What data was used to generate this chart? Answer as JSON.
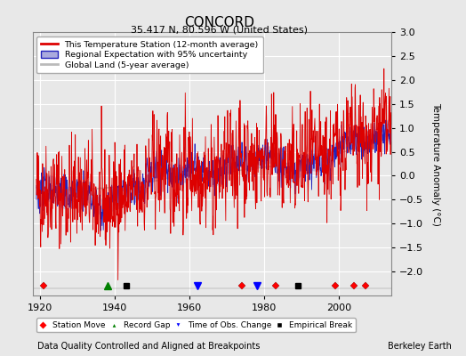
{
  "title": "CONCORD",
  "subtitle": "35.417 N, 80.596 W (United States)",
  "xlabel_bottom": "Data Quality Controlled and Aligned at Breakpoints",
  "xlabel_right": "Berkeley Earth",
  "ylabel": "Temperature Anomaly (°C)",
  "xlim": [
    1918,
    2014
  ],
  "ylim": [
    -2.5,
    3.0
  ],
  "yticks": [
    -2,
    -1.5,
    -1,
    -0.5,
    0,
    0.5,
    1,
    1.5,
    2,
    2.5,
    3
  ],
  "xticks": [
    1920,
    1940,
    1960,
    1980,
    2000
  ],
  "bg_color": "#e8e8e8",
  "plot_bg_color": "#e8e8e8",
  "grid_color": "#ffffff",
  "station_color": "#dd0000",
  "regional_color": "#2222bb",
  "regional_fill_color": "#aaaadd",
  "global_color": "#bbbbbb",
  "seed": 42,
  "station_move_years": [
    1921,
    1974,
    1983,
    1999,
    2004,
    2007
  ],
  "record_gap_years": [
    1938
  ],
  "obs_change_years": [
    1962,
    1978
  ],
  "empirical_break_years": [
    1943,
    1989
  ]
}
